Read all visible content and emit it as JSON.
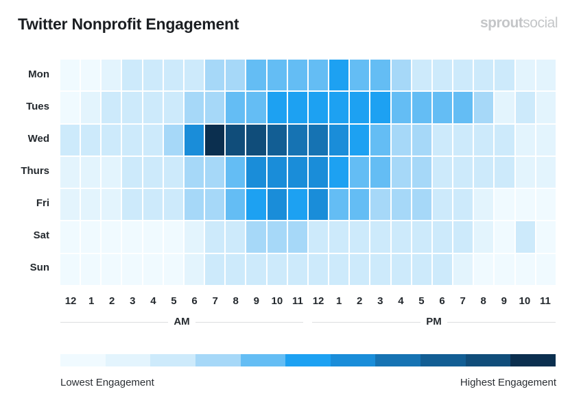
{
  "header": {
    "title": "Twitter Nonprofit Engagement",
    "logo_text": "sproutsocial",
    "logo_parts": [
      "sprout",
      "social"
    ]
  },
  "chart_data": {
    "type": "heatmap",
    "title": "Twitter Nonprofit Engagement",
    "rows": [
      "Mon",
      "Tues",
      "Wed",
      "Thurs",
      "Fri",
      "Sat",
      "Sun"
    ],
    "columns": [
      "12",
      "1",
      "2",
      "3",
      "4",
      "5",
      "6",
      "7",
      "8",
      "9",
      "10",
      "11",
      "12",
      "1",
      "2",
      "3",
      "4",
      "5",
      "6",
      "7",
      "8",
      "9",
      "10",
      "11"
    ],
    "column_groups": [
      {
        "label": "AM",
        "span": 12
      },
      {
        "label": "PM",
        "span": 12
      }
    ],
    "value_scale": "engagement level 0 (lowest) to 10 (highest)",
    "values": [
      [
        0,
        0,
        1,
        2,
        2,
        2,
        2,
        3,
        3,
        4,
        4,
        4,
        4,
        5,
        4,
        4,
        3,
        2,
        2,
        2,
        2,
        2,
        1,
        1
      ],
      [
        0,
        1,
        2,
        2,
        2,
        2,
        3,
        3,
        4,
        4,
        5,
        5,
        5,
        5,
        5,
        5,
        4,
        4,
        4,
        4,
        3,
        1,
        2,
        1
      ],
      [
        2,
        2,
        2,
        2,
        2,
        3,
        6,
        10,
        9,
        9,
        8,
        7,
        7,
        6,
        5,
        4,
        3,
        3,
        2,
        2,
        2,
        2,
        1,
        1
      ],
      [
        1,
        1,
        1,
        2,
        2,
        2,
        3,
        3,
        4,
        6,
        6,
        6,
        6,
        5,
        4,
        4,
        3,
        3,
        2,
        2,
        2,
        2,
        1,
        1
      ],
      [
        1,
        1,
        1,
        2,
        2,
        2,
        3,
        3,
        4,
        5,
        6,
        5,
        6,
        4,
        4,
        3,
        3,
        3,
        2,
        2,
        1,
        0,
        0,
        0
      ],
      [
        0,
        0,
        0,
        0,
        0,
        0,
        1,
        2,
        2,
        3,
        3,
        3,
        2,
        2,
        2,
        2,
        2,
        2,
        2,
        2,
        1,
        0,
        2,
        0
      ],
      [
        0,
        0,
        0,
        0,
        0,
        0,
        1,
        2,
        2,
        2,
        2,
        2,
        2,
        2,
        2,
        2,
        2,
        2,
        2,
        1,
        0,
        0,
        0,
        0
      ]
    ],
    "color_scale": [
      "#f0faff",
      "#e3f4fd",
      "#cdeafb",
      "#a6d8f8",
      "#64bdf4",
      "#1da1f2",
      "#1a8dd9",
      "#1673b3",
      "#125e94",
      "#104d7a",
      "#0b2f4f"
    ],
    "legend": {
      "low_label": "Lowest Engagement",
      "high_label": "Highest Engagement",
      "placement": "bottom"
    }
  }
}
